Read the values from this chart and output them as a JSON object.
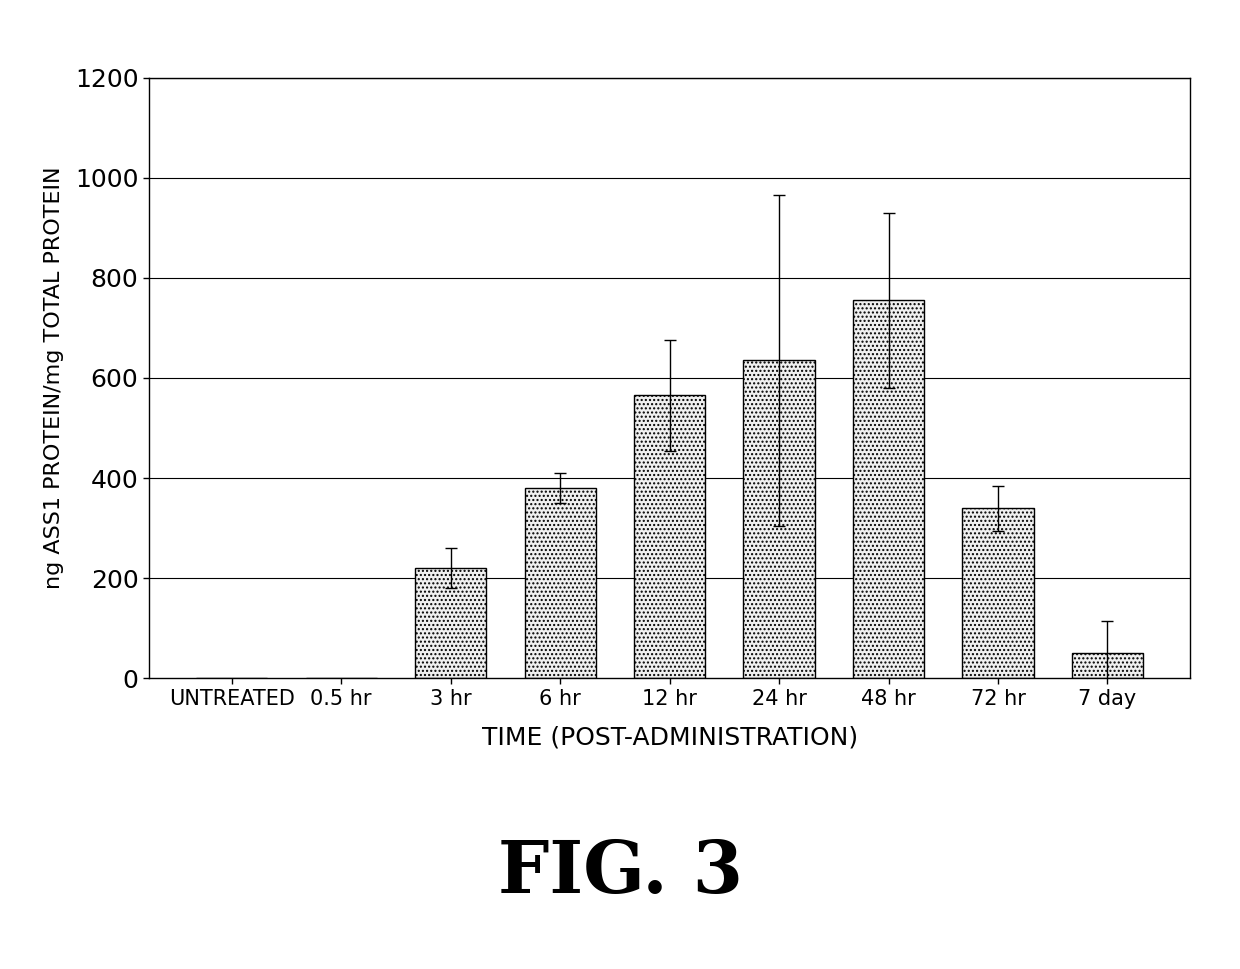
{
  "categories": [
    "UNTREATED",
    "0.5 hr",
    "3 hr",
    "6 hr",
    "12 hr",
    "24 hr",
    "48 hr",
    "72 hr",
    "7 day"
  ],
  "values": [
    0,
    0,
    220,
    380,
    565,
    635,
    755,
    340,
    50
  ],
  "errors": [
    0,
    0,
    40,
    30,
    110,
    330,
    175,
    45,
    65
  ],
  "ylabel": "ng ASS1 PROTEIN/mg TOTAL PROTEIN",
  "xlabel": "TIME (POST-ADMINISTRATION)",
  "figure_label": "FIG. 3",
  "ylim": [
    0,
    1200
  ],
  "yticks": [
    0,
    200,
    400,
    600,
    800,
    1000,
    1200
  ],
  "bar_color": "#f0f0f0",
  "bar_edge_color": "#000000",
  "background_color": "#ffffff",
  "grid_color": "#000000",
  "hatch": "....",
  "bar_width": 0.65,
  "figure_width": 12.4,
  "figure_height": 9.69,
  "dpi": 100
}
